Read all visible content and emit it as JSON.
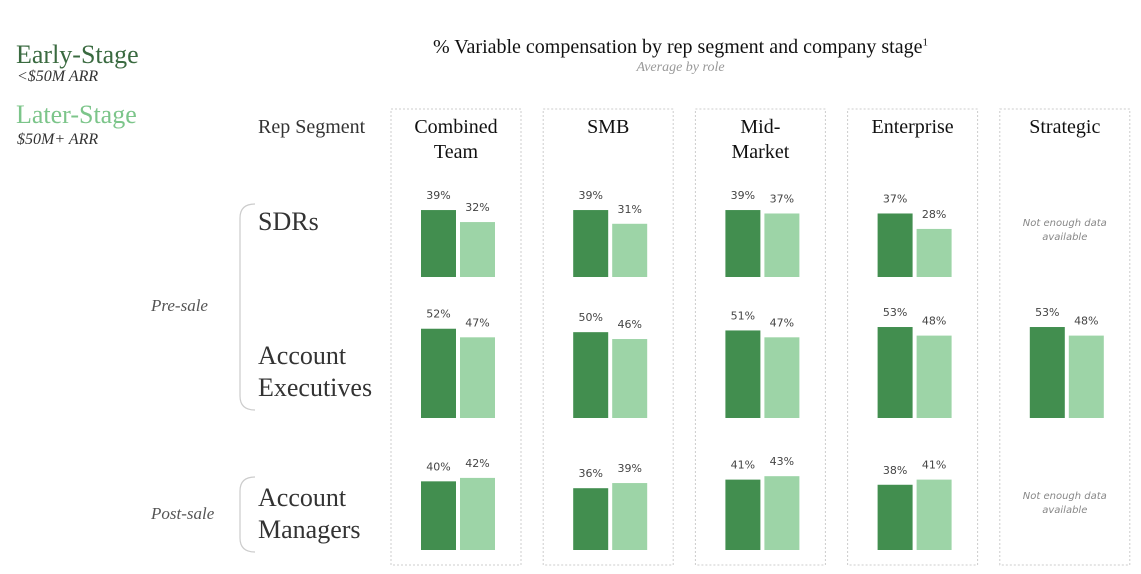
{
  "chart_data": {
    "type": "bar",
    "title": "% Variable compensation by rep segment and company stage",
    "title_footnote": "1",
    "subtitle": "Average by role",
    "row_header": "Rep Segment",
    "columns": [
      "Combined Team",
      "SMB",
      "Mid-Market",
      "Enterprise",
      "Strategic"
    ],
    "groups": [
      {
        "label": "Pre-sale",
        "rows": [
          "SDRs",
          "Account Executives"
        ]
      },
      {
        "label": "Post-sale",
        "rows": [
          "Account Managers"
        ]
      }
    ],
    "missing_label": "Not enough data available",
    "ylim": [
      0,
      60
    ],
    "series": [
      {
        "name": "Early-Stage",
        "note": "<$50M ARR",
        "color": "#428e4f",
        "text_color": "#3a6a40",
        "values": [
          [
            39,
            39,
            39,
            37,
            null
          ],
          [
            52,
            50,
            51,
            53,
            53
          ],
          [
            40,
            36,
            41,
            38,
            null
          ]
        ],
        "value_labels": [
          [
            "39%",
            "39%",
            "39%",
            "37%",
            null
          ],
          [
            "52%",
            "50%",
            "51%",
            "53%",
            "53%"
          ],
          [
            "40%",
            "36%",
            "41%",
            "38%",
            null
          ]
        ]
      },
      {
        "name": "Later-Stage",
        "note": "$50M+ ARR",
        "color": "#9dd4a7",
        "text_color": "#7cc58a",
        "values": [
          [
            32,
            31,
            37,
            28,
            null
          ],
          [
            47,
            46,
            47,
            48,
            48
          ],
          [
            42,
            39,
            43,
            41,
            null
          ]
        ],
        "value_labels": [
          [
            "32%",
            "31%",
            "37%",
            "28%",
            null
          ],
          [
            "47%",
            "46%",
            "47%",
            "48%",
            "48%"
          ],
          [
            "42%",
            "39%",
            "43%",
            "41%",
            null
          ]
        ]
      }
    ]
  }
}
